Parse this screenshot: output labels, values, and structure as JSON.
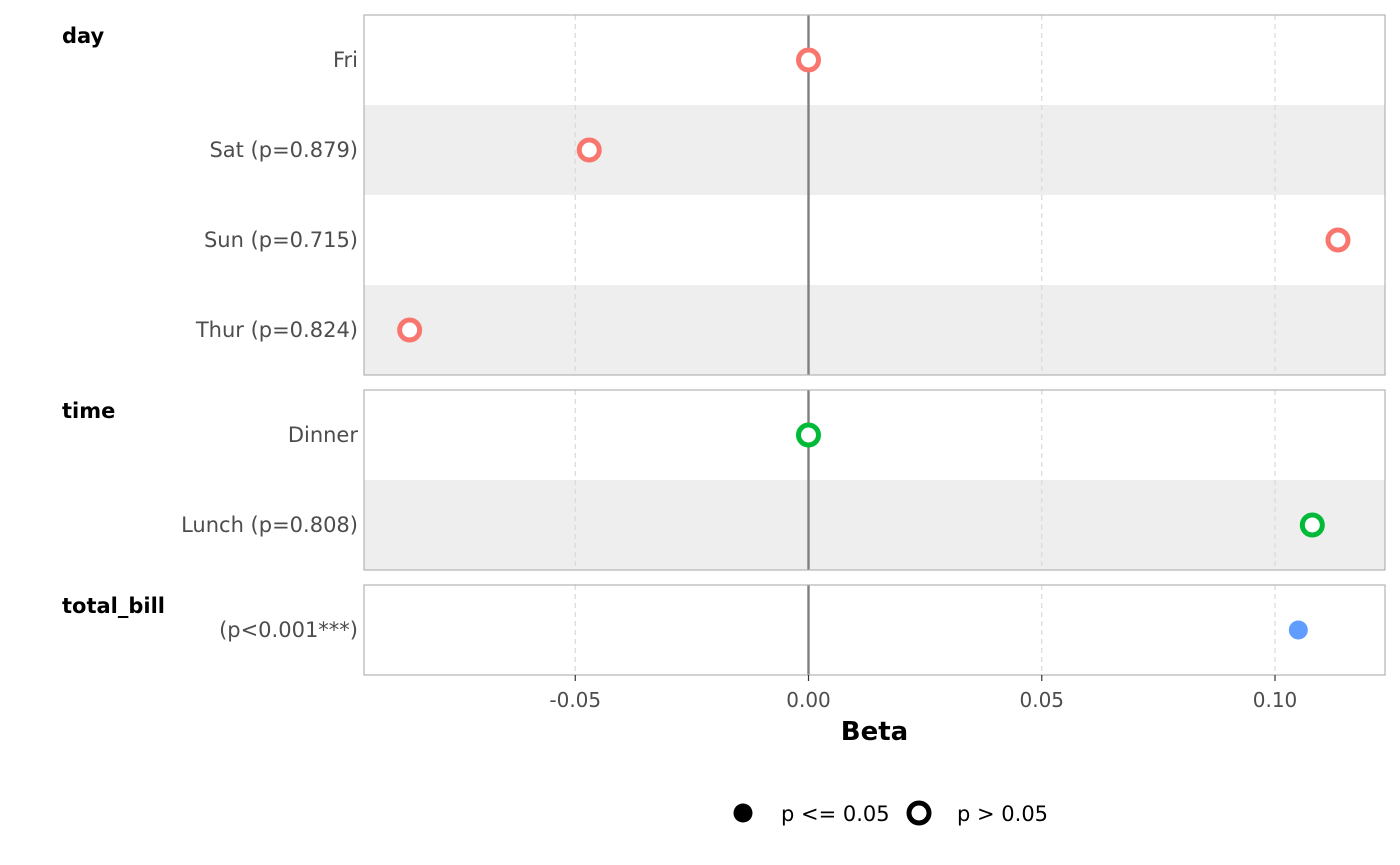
{
  "chart_data": {
    "type": "scatter",
    "xlabel": "Beta",
    "xlim": [
      -0.0945,
      0.1244
    ],
    "x_ticks": [
      {
        "value": -0.05,
        "label": "-0.05"
      },
      {
        "value": 0.0,
        "label": "0.00"
      },
      {
        "value": 0.05,
        "label": "0.05"
      },
      {
        "value": 0.1,
        "label": "0.10"
      }
    ],
    "grid": true,
    "reference_line": 0,
    "groups": [
      {
        "name": "day",
        "color": "#F8766D",
        "rows": [
          {
            "label": "Fri",
            "beta": 0.0,
            "significant": false
          },
          {
            "label": "Sat (p=0.879)",
            "beta": -0.047,
            "significant": false
          },
          {
            "label": "Sun (p=0.715)",
            "beta": 0.1135,
            "significant": false
          },
          {
            "label": "Thur (p=0.824)",
            "beta": -0.0855,
            "significant": false
          }
        ]
      },
      {
        "name": "time",
        "color": "#00BA38",
        "rows": [
          {
            "label": "Dinner",
            "beta": 0.0,
            "significant": false
          },
          {
            "label": "Lunch (p=0.808)",
            "beta": 0.108,
            "significant": false
          }
        ]
      },
      {
        "name": "total_bill",
        "color": "#619CFF",
        "rows": [
          {
            "label": "(p<0.001***)",
            "beta": 0.105,
            "significant": true
          }
        ]
      }
    ],
    "legend": {
      "position": "bottom",
      "items": [
        {
          "label": "p <= 0.05",
          "shape": "filled-circle"
        },
        {
          "label": "p > 0.05",
          "shape": "open-circle"
        }
      ]
    }
  }
}
